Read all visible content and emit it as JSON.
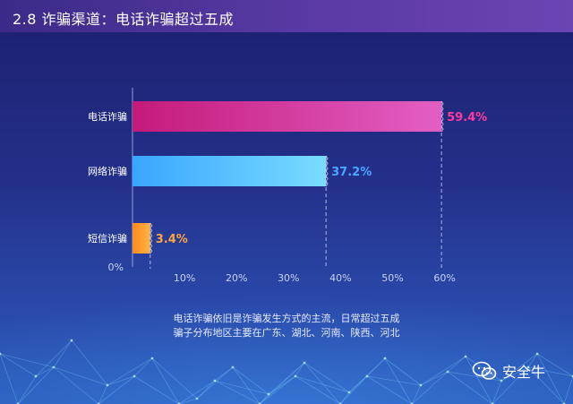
{
  "header": {
    "title": "2.8 诈骗渠道：电话诈骗超过五成"
  },
  "chart_data": {
    "type": "bar",
    "orientation": "horizontal",
    "categories": [
      "电话诈骗",
      "网络诈骗",
      "短信诈骗"
    ],
    "values": [
      59.4,
      37.2,
      3.4
    ],
    "value_labels": [
      "59.4%",
      "37.2%",
      "3.4%"
    ],
    "xlim": [
      0,
      60
    ],
    "x_ticks": [
      {
        "value": 10,
        "label": "10%"
      },
      {
        "value": 20,
        "label": "20%"
      },
      {
        "value": 30,
        "label": "30%"
      },
      {
        "value": 40,
        "label": "40%"
      },
      {
        "value": 50,
        "label": "50%"
      },
      {
        "value": 60,
        "label": "60%"
      }
    ],
    "origin_label": "0%",
    "colors": {
      "电话诈骗": [
        "#c41a7a",
        "#e35fc4"
      ],
      "网络诈骗": [
        "#39a6ff",
        "#79dcff"
      ],
      "短信诈骗": [
        "#ff8a1c",
        "#ffb347"
      ]
    },
    "label_colors": [
      "#ff3a9e",
      "#4aa8ff",
      "#ffa53a"
    ]
  },
  "caption": {
    "line1": "电话诈骗依旧是诈骗发生方式的主流，日常超过五成",
    "line2": "骗子分布地区主要在广东、湖北、河南、陕西、河北"
  },
  "brand": {
    "name": "安全牛",
    "icon": "wechat-icon"
  }
}
